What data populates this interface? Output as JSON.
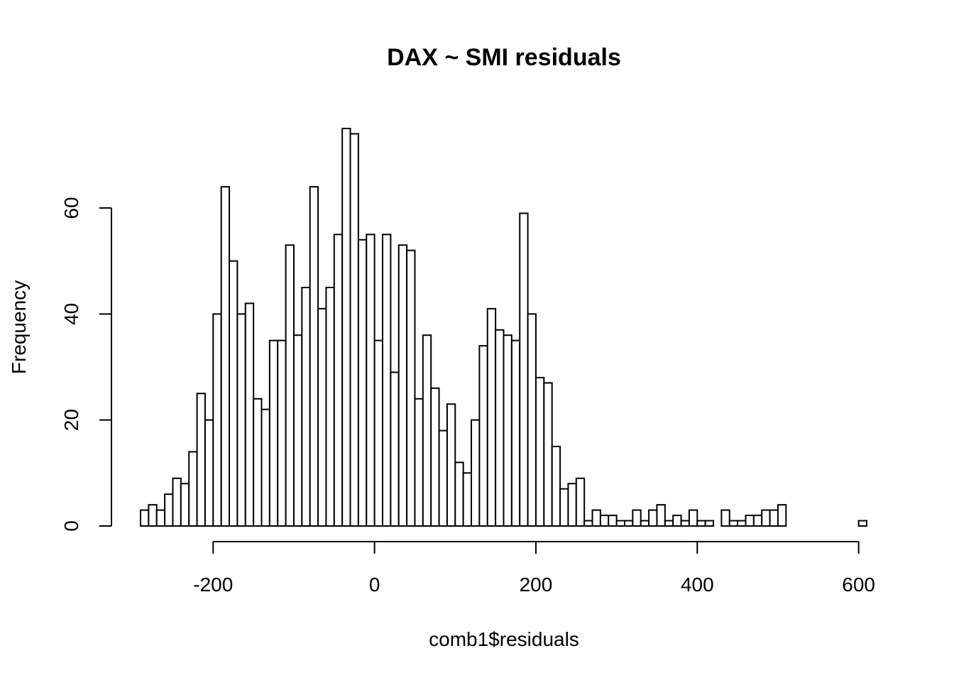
{
  "chart_data": {
    "type": "histogram",
    "title": "DAX ~ SMI residuals",
    "x_label": "comb1$residuals",
    "y_label": "Frequency",
    "bins": [
      -290,
      -280,
      -270,
      -260,
      -250,
      -240,
      -230,
      -220,
      -210,
      -200,
      -190,
      -180,
      -170,
      -160,
      -150,
      -140,
      -130,
      -120,
      -110,
      -100,
      -90,
      -80,
      -70,
      -60,
      -50,
      -40,
      -30,
      -20,
      -10,
      0,
      10,
      20,
      30,
      40,
      50,
      60,
      70,
      80,
      90,
      100,
      110,
      120,
      130,
      140,
      150,
      160,
      170,
      180,
      190,
      200,
      210,
      220,
      230,
      240,
      250,
      260,
      270,
      280,
      290,
      300,
      310,
      320,
      330,
      340,
      350,
      360,
      370,
      380,
      390,
      400,
      410,
      420,
      430,
      440,
      450,
      460,
      470,
      480,
      490,
      500,
      510,
      520,
      530,
      540,
      550,
      560,
      570,
      580,
      590,
      600,
      610
    ],
    "counts": [
      3,
      4,
      3,
      6,
      9,
      8,
      14,
      25,
      20,
      40,
      64,
      50,
      40,
      42,
      24,
      22,
      35,
      35,
      53,
      36,
      45,
      64,
      41,
      45,
      55,
      75,
      74,
      54,
      55,
      35,
      55,
      29,
      53,
      52,
      24,
      36,
      26,
      18,
      23,
      12,
      10,
      20,
      34,
      41,
      37,
      36,
      35,
      59,
      40,
      28,
      27,
      15,
      7,
      8,
      9,
      1,
      3,
      2,
      2,
      1,
      1,
      3,
      1,
      3,
      4,
      1,
      2,
      1,
      3,
      1,
      1,
      0,
      3,
      1,
      1,
      2,
      2,
      3,
      3,
      4,
      0,
      0,
      0,
      0,
      0,
      0,
      0,
      0,
      0,
      1
    ],
    "color": "#ffffff",
    "edge_color": "#000000",
    "xlim": [
      -290,
      610
    ],
    "ylim": [
      0,
      75
    ],
    "xticks": [
      -200,
      0,
      200,
      400,
      600
    ],
    "yticks": [
      0,
      20,
      40,
      60
    ]
  }
}
